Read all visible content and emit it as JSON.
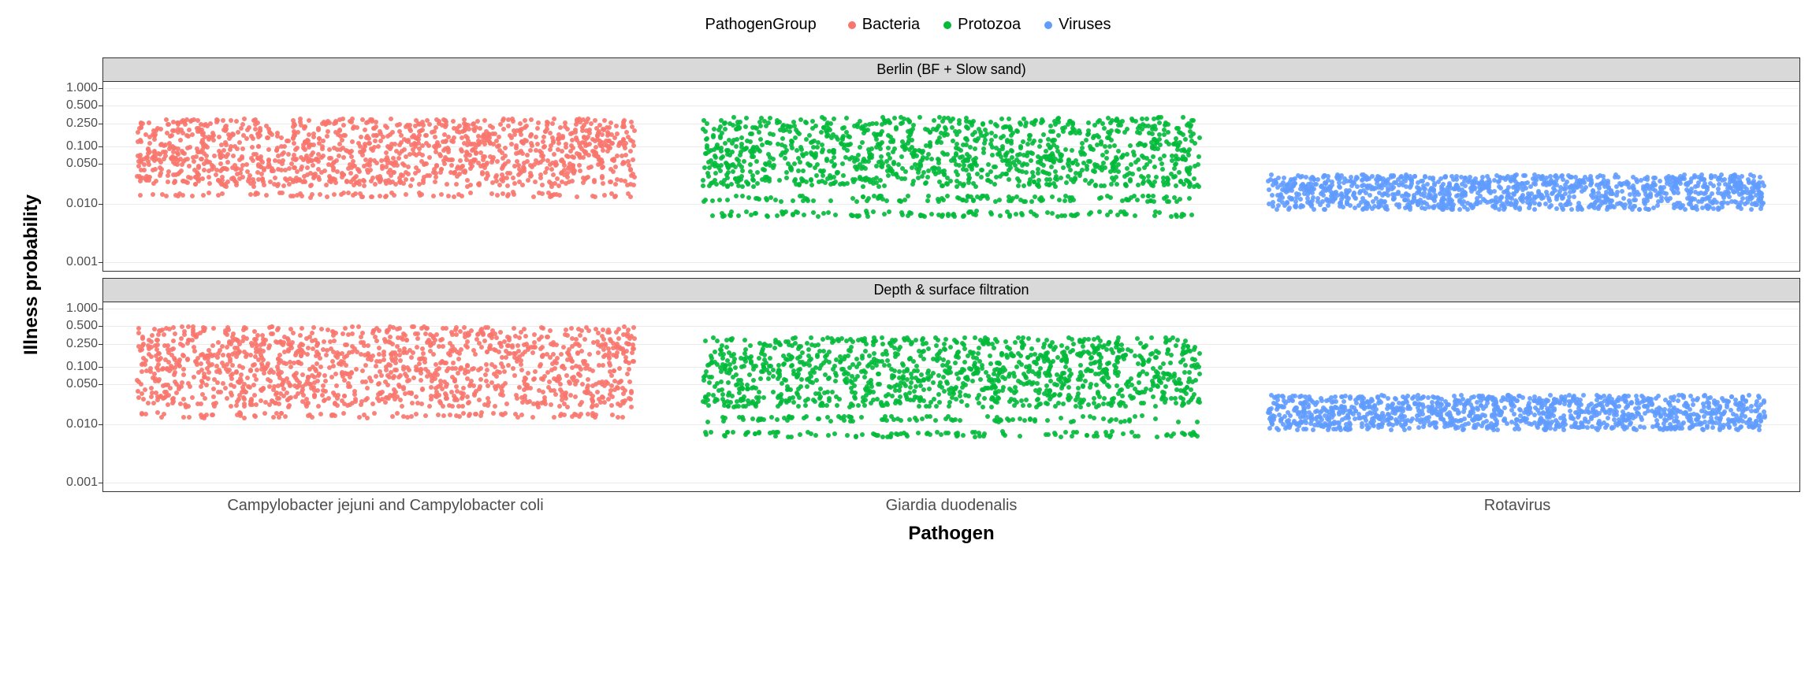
{
  "legend": {
    "title": "PathogenGroup",
    "items": [
      {
        "label": "Bacteria",
        "color": "#f8766d"
      },
      {
        "label": "Protozoa",
        "color": "#00ba38"
      },
      {
        "label": "Viruses",
        "color": "#619cff"
      }
    ]
  },
  "axes": {
    "ylabel": "Illness probability",
    "xlabel": "Pathogen",
    "y_scale": "log",
    "ylim": [
      0.0007,
      1.3
    ],
    "y_ticks": [
      0.001,
      0.01,
      0.05,
      0.1,
      0.25,
      0.5,
      1.0
    ],
    "y_tick_labels": [
      "0.001",
      "0.010",
      "0.050",
      "0.100",
      "0.250",
      "0.500",
      "1.000"
    ],
    "x_categories": [
      "Campylobacter jejuni and Campylobacter coli",
      "Giardia duodenalis",
      "Rotavirus"
    ],
    "grid_color": "#ececec",
    "tick_fontsize": 16,
    "label_fontsize": 24
  },
  "facets": [
    {
      "label": "Berlin (BF + Slow sand)"
    },
    {
      "label": "Depth & surface filtration"
    }
  ],
  "strip": {
    "background_color": "#d9d9d9",
    "border_color": "#333333"
  },
  "background_color": "#ffffff",
  "point": {
    "size": 6,
    "opacity": 0.9
  },
  "series": [
    {
      "category_index": 0,
      "color": "#f8766d",
      "group": "Bacteria",
      "facets": [
        {
          "y_min": 0.013,
          "y_max": 0.3,
          "density_bands": [
            [
              0.013,
              0.016
            ],
            [
              0.02,
              0.3
            ]
          ],
          "n_points": 1400,
          "jitter_width": 0.88
        },
        {
          "y_min": 0.013,
          "y_max": 0.5,
          "density_bands": [
            [
              0.013,
              0.016
            ],
            [
              0.02,
              0.5
            ]
          ],
          "n_points": 1400,
          "jitter_width": 0.88
        }
      ]
    },
    {
      "category_index": 1,
      "color": "#00ba38",
      "group": "Protozoa",
      "facets": [
        {
          "y_min": 0.006,
          "y_max": 0.32,
          "density_bands": [
            [
              0.006,
              0.0075
            ],
            [
              0.011,
              0.014
            ],
            [
              0.02,
              0.32
            ]
          ],
          "n_points": 1400,
          "jitter_width": 0.88
        },
        {
          "y_min": 0.006,
          "y_max": 0.32,
          "density_bands": [
            [
              0.006,
              0.0075
            ],
            [
              0.011,
              0.014
            ],
            [
              0.02,
              0.32
            ]
          ],
          "n_points": 1400,
          "jitter_width": 0.88
        }
      ]
    },
    {
      "category_index": 2,
      "color": "#619cff",
      "group": "Viruses",
      "facets": [
        {
          "y_min": 0.008,
          "y_max": 0.032,
          "density_bands": [
            [
              0.008,
              0.032
            ]
          ],
          "n_points": 1200,
          "jitter_width": 0.88
        },
        {
          "y_min": 0.008,
          "y_max": 0.032,
          "density_bands": [
            [
              0.008,
              0.032
            ]
          ],
          "n_points": 1200,
          "jitter_width": 0.88
        }
      ]
    }
  ]
}
